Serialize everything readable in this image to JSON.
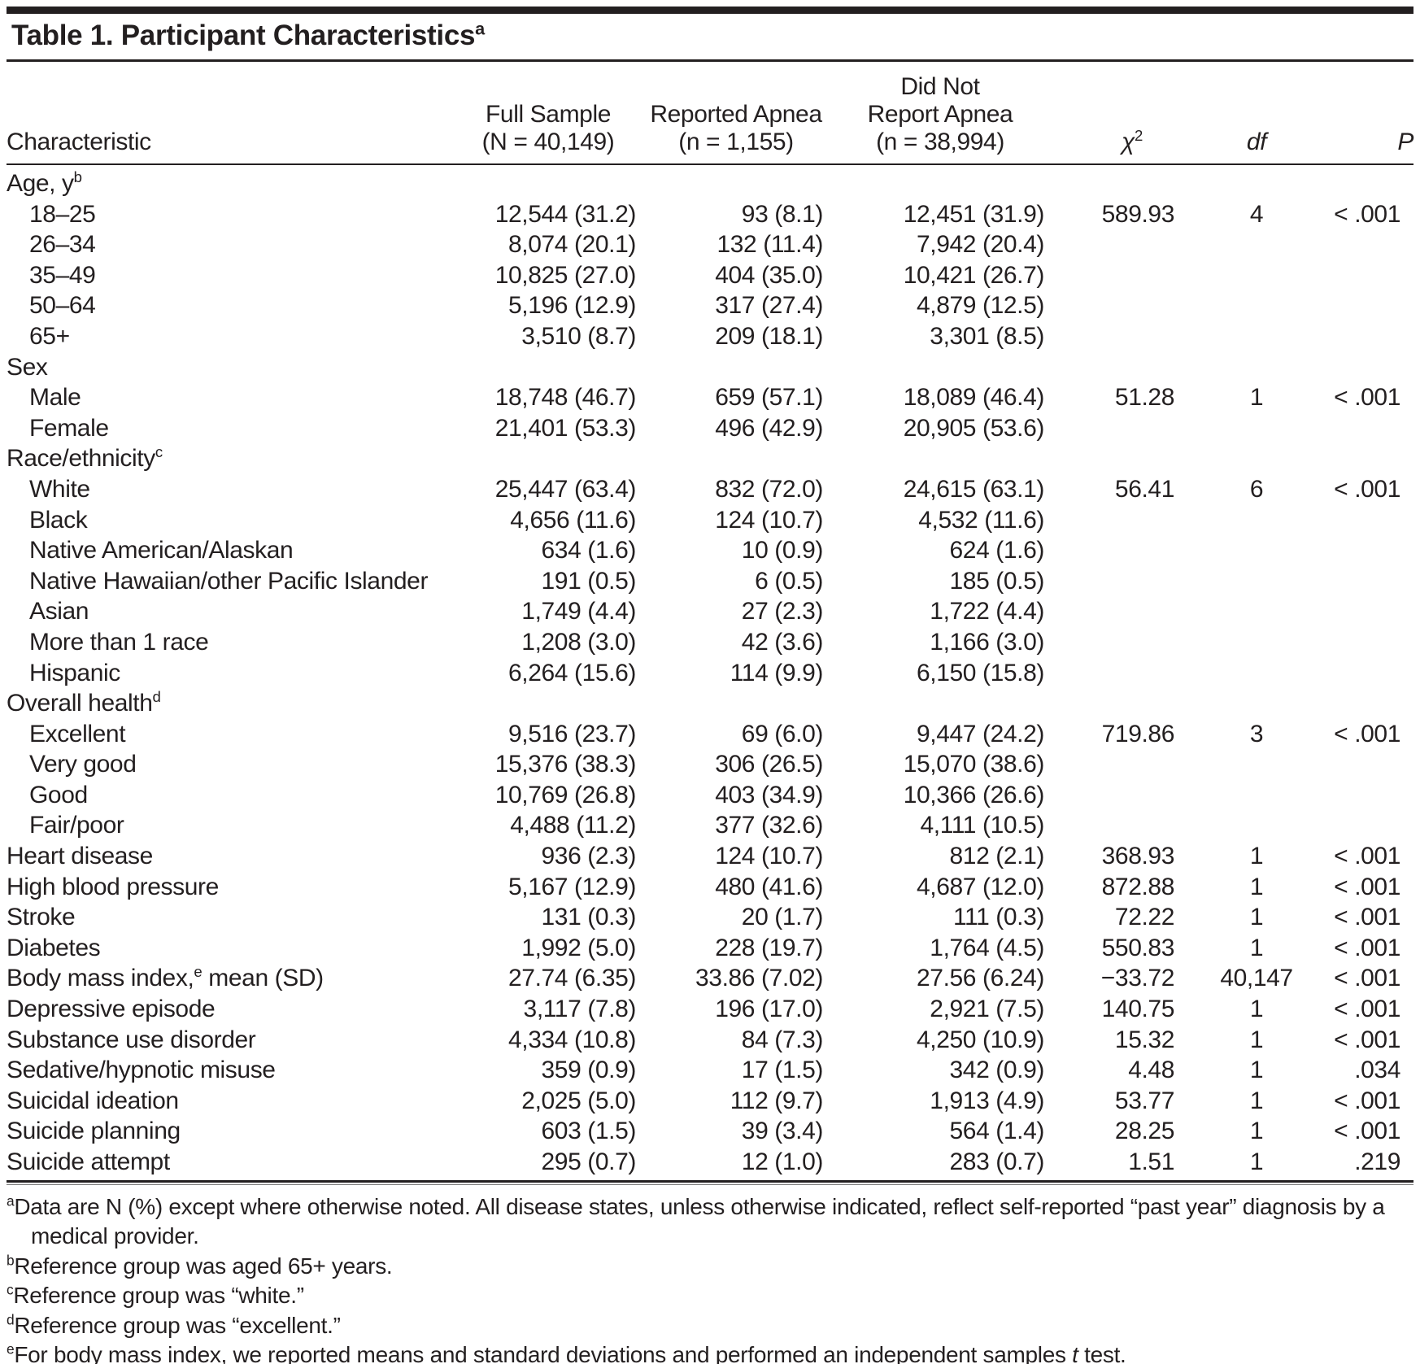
{
  "title": {
    "text": "Table 1. Participant Characteristics",
    "sup": "a"
  },
  "header": {
    "characteristic": "Characteristic",
    "full_sample": {
      "line1": "Full Sample",
      "line2": "(N = 40,149)"
    },
    "reported_apnea": {
      "line1": "Reported Apnea",
      "line2": "(n = 1,155)"
    },
    "did_not_report": {
      "line1": "Did Not",
      "line2": "Report Apnea",
      "line3": "(n = 38,994)"
    },
    "chi_square": {
      "base": "χ",
      "sup": "2"
    },
    "df": "df",
    "p": "P"
  },
  "rows": [
    {
      "type": "section",
      "label": "Age, y",
      "sup": "b",
      "full": "",
      "reported": "",
      "not_reported": "",
      "chi": "",
      "df": "",
      "p": ""
    },
    {
      "type": "sub",
      "label": "18–25",
      "full": "12,544 (31.2)",
      "reported": "93 (8.1)",
      "not_reported": "12,451 (31.9)",
      "chi": "589.93",
      "df": "4",
      "p": "< .001"
    },
    {
      "type": "sub",
      "label": "26–34",
      "full": "8,074 (20.1)",
      "reported": "132 (11.4)",
      "not_reported": "7,942 (20.4)",
      "chi": "",
      "df": "",
      "p": ""
    },
    {
      "type": "sub",
      "label": "35–49",
      "full": "10,825 (27.0)",
      "reported": "404 (35.0)",
      "not_reported": "10,421 (26.7)",
      "chi": "",
      "df": "",
      "p": ""
    },
    {
      "type": "sub",
      "label": "50–64",
      "full": "5,196 (12.9)",
      "reported": "317 (27.4)",
      "not_reported": "4,879 (12.5)",
      "chi": "",
      "df": "",
      "p": ""
    },
    {
      "type": "sub",
      "label": "65+",
      "full": "3,510 (8.7)",
      "reported": "209 (18.1)",
      "not_reported": "3,301 (8.5)",
      "chi": "",
      "df": "",
      "p": ""
    },
    {
      "type": "section",
      "label": "Sex",
      "full": "",
      "reported": "",
      "not_reported": "",
      "chi": "",
      "df": "",
      "p": ""
    },
    {
      "type": "sub",
      "label": "Male",
      "full": "18,748 (46.7)",
      "reported": "659 (57.1)",
      "not_reported": "18,089 (46.4)",
      "chi": "51.28",
      "df": "1",
      "p": "< .001"
    },
    {
      "type": "sub",
      "label": "Female",
      "full": "21,401 (53.3)",
      "reported": "496 (42.9)",
      "not_reported": "20,905 (53.6)",
      "chi": "",
      "df": "",
      "p": ""
    },
    {
      "type": "section",
      "label": "Race/ethnicity",
      "sup": "c",
      "full": "",
      "reported": "",
      "not_reported": "",
      "chi": "",
      "df": "",
      "p": ""
    },
    {
      "type": "sub",
      "label": "White",
      "full": "25,447 (63.4)",
      "reported": "832 (72.0)",
      "not_reported": "24,615 (63.1)",
      "chi": "56.41",
      "df": "6",
      "p": "< .001"
    },
    {
      "type": "sub",
      "label": "Black",
      "full": "4,656 (11.6)",
      "reported": "124 (10.7)",
      "not_reported": "4,532 (11.6)",
      "chi": "",
      "df": "",
      "p": ""
    },
    {
      "type": "sub",
      "label": "Native American/Alaskan",
      "full": "634 (1.6)",
      "reported": "10 (0.9)",
      "not_reported": "624 (1.6)",
      "chi": "",
      "df": "",
      "p": ""
    },
    {
      "type": "sub",
      "label": "Native Hawaiian/other Pacific Islander",
      "full": "191 (0.5)",
      "reported": "6 (0.5)",
      "not_reported": "185 (0.5)",
      "chi": "",
      "df": "",
      "p": ""
    },
    {
      "type": "sub",
      "label": "Asian",
      "full": "1,749 (4.4)",
      "reported": "27 (2.3)",
      "not_reported": "1,722 (4.4)",
      "chi": "",
      "df": "",
      "p": ""
    },
    {
      "type": "sub",
      "label": "More than 1 race",
      "full": "1,208 (3.0)",
      "reported": "42 (3.6)",
      "not_reported": "1,166 (3.0)",
      "chi": "",
      "df": "",
      "p": ""
    },
    {
      "type": "sub",
      "label": "Hispanic",
      "full": "6,264 (15.6)",
      "reported": "114 (9.9)",
      "not_reported": "6,150 (15.8)",
      "chi": "",
      "df": "",
      "p": ""
    },
    {
      "type": "section",
      "label": "Overall health",
      "sup": "d",
      "full": "",
      "reported": "",
      "not_reported": "",
      "chi": "",
      "df": "",
      "p": ""
    },
    {
      "type": "sub",
      "label": "Excellent",
      "full": "9,516 (23.7)",
      "reported": "69 (6.0)",
      "not_reported": "9,447 (24.2)",
      "chi": "719.86",
      "df": "3",
      "p": "< .001"
    },
    {
      "type": "sub",
      "label": "Very good",
      "full": "15,376 (38.3)",
      "reported": "306 (26.5)",
      "not_reported": "15,070 (38.6)",
      "chi": "",
      "df": "",
      "p": ""
    },
    {
      "type": "sub",
      "label": "Good",
      "full": "10,769 (26.8)",
      "reported": "403 (34.9)",
      "not_reported": "10,366 (26.6)",
      "chi": "",
      "df": "",
      "p": ""
    },
    {
      "type": "sub",
      "label": "Fair/poor",
      "full": "4,488 (11.2)",
      "reported": "377 (32.6)",
      "not_reported": "4,111 (10.5)",
      "chi": "",
      "df": "",
      "p": ""
    },
    {
      "type": "main",
      "label": "Heart disease",
      "full": "936 (2.3)",
      "reported": "124 (10.7)",
      "not_reported": "812 (2.1)",
      "chi": "368.93",
      "df": "1",
      "p": "< .001"
    },
    {
      "type": "main",
      "label": "High blood pressure",
      "full": "5,167 (12.9)",
      "reported": "480 (41.6)",
      "not_reported": "4,687 (12.0)",
      "chi": "872.88",
      "df": "1",
      "p": "< .001"
    },
    {
      "type": "main",
      "label": "Stroke",
      "full": "131 (0.3)",
      "reported": "20 (1.7)",
      "not_reported": "111 (0.3)",
      "chi": "72.22",
      "df": "1",
      "p": "< .001"
    },
    {
      "type": "main",
      "label": "Diabetes",
      "full": "1,992 (5.0)",
      "reported": "228 (19.7)",
      "not_reported": "1,764 (4.5)",
      "chi": "550.83",
      "df": "1",
      "p": "< .001"
    },
    {
      "type": "main",
      "label": "Body mass index,",
      "sup": "e",
      "after": " mean (SD)",
      "full": "27.74 (6.35)",
      "reported": "33.86 (7.02)",
      "not_reported": "27.56 (6.24)",
      "chi": "−33.72",
      "df": "40,147",
      "p": "< .001"
    },
    {
      "type": "main",
      "label": "Depressive episode",
      "full": "3,117 (7.8)",
      "reported": "196 (17.0)",
      "not_reported": "2,921 (7.5)",
      "chi": "140.75",
      "df": "1",
      "p": "< .001"
    },
    {
      "type": "main",
      "label": "Substance use disorder",
      "full": "4,334 (10.8)",
      "reported": "84 (7.3)",
      "not_reported": "4,250 (10.9)",
      "chi": "15.32",
      "df": "1",
      "p": "< .001"
    },
    {
      "type": "main",
      "label": "Sedative/hypnotic misuse",
      "full": "359 (0.9)",
      "reported": "17 (1.5)",
      "not_reported": "342 (0.9)",
      "chi": "4.48",
      "df": "1",
      "p": ".034"
    },
    {
      "type": "main",
      "label": "Suicidal ideation",
      "full": "2,025 (5.0)",
      "reported": "112 (9.7)",
      "not_reported": "1,913 (4.9)",
      "chi": "53.77",
      "df": "1",
      "p": "< .001"
    },
    {
      "type": "main",
      "label": "Suicide planning",
      "full": "603 (1.5)",
      "reported": "39 (3.4)",
      "not_reported": "564 (1.4)",
      "chi": "28.25",
      "df": "1",
      "p": "< .001"
    },
    {
      "type": "main",
      "label": "Suicide attempt",
      "full": "295 (0.7)",
      "reported": "12 (1.0)",
      "not_reported": "283 (0.7)",
      "chi": "1.51",
      "df": "1",
      "p": ".219"
    }
  ],
  "footnotes": [
    {
      "sup": "a",
      "text": "Data are N (%) except where otherwise noted. All disease states, unless otherwise indicated, reflect self-reported “past year” diagnosis by a medical provider."
    },
    {
      "sup": "b",
      "text": "Reference group was aged 65+ years."
    },
    {
      "sup": "c",
      "text": "Reference group was “white.”"
    },
    {
      "sup": "d",
      "text": "Reference group was “excellent.”"
    },
    {
      "sup": "e",
      "text_pre": "For body mass index, we reported means and standard deviations and performed an independent samples ",
      "text_italic": "t",
      "text_post": " test."
    }
  ]
}
